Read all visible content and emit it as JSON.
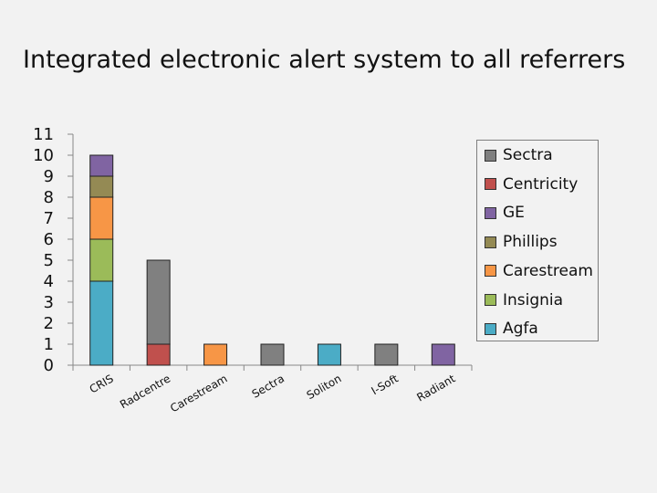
{
  "title": "Integrated electronic alert system to all referrers",
  "chart_data": {
    "type": "bar",
    "stacked": true,
    "title": "Integrated electronic alert system to all referrers",
    "categories": [
      "CRIS",
      "Radcentre",
      "Carestream",
      "Sectra",
      "Soliton",
      "I-Soft",
      "Radiant"
    ],
    "series": [
      {
        "name": "Agfa",
        "color": "#4bacc6",
        "values": [
          4,
          0,
          0,
          0,
          1,
          0,
          0
        ]
      },
      {
        "name": "Insignia",
        "color": "#9bbb59",
        "values": [
          2,
          0,
          0,
          0,
          0,
          0,
          0
        ]
      },
      {
        "name": "Carestream",
        "color": "#f79646",
        "values": [
          2,
          0,
          1,
          0,
          0,
          0,
          0
        ]
      },
      {
        "name": "Phillips",
        "color": "#948a54",
        "values": [
          1,
          0,
          0,
          0,
          0,
          0,
          0
        ]
      },
      {
        "name": "GE",
        "color": "#8064a2",
        "values": [
          1,
          0,
          0,
          0,
          0,
          0,
          1
        ]
      },
      {
        "name": "Centricity",
        "color": "#c0504d",
        "values": [
          0,
          1,
          0,
          0,
          0,
          0,
          0
        ]
      },
      {
        "name": "Sectra",
        "color": "#808080",
        "values": [
          0,
          4,
          0,
          1,
          0,
          1,
          0
        ]
      }
    ],
    "legend_order": [
      "Sectra",
      "Centricity",
      "GE",
      "Phillips",
      "Carestream",
      "Insignia",
      "Agfa"
    ],
    "yticks": [
      "0",
      "1",
      "2",
      "3",
      "4",
      "5",
      "6",
      "7",
      "8",
      "9",
      "10",
      "11"
    ],
    "ylim": [
      0,
      11
    ],
    "xlabel": "",
    "ylabel": "",
    "grid": false,
    "legend_position": "right"
  }
}
